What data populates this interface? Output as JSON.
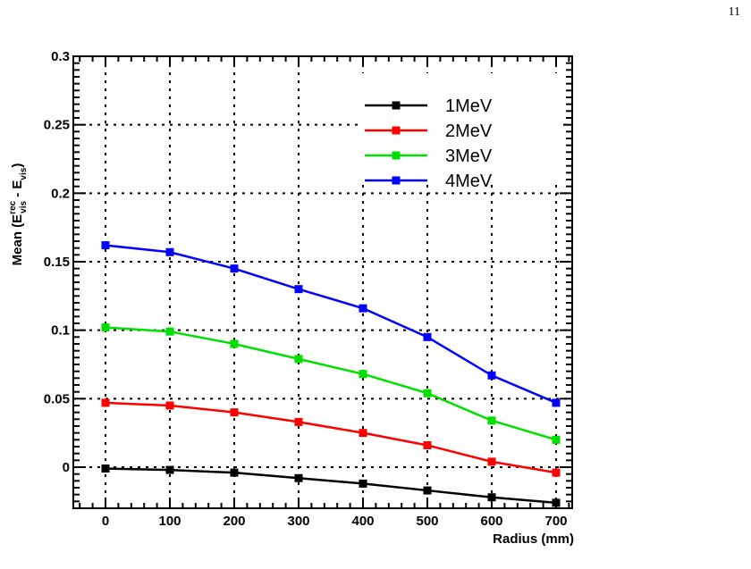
{
  "page": {
    "number": "11"
  },
  "chart_data": {
    "type": "line",
    "xlabel": "Radius (mm)",
    "ylabel": {
      "prefix": "Mean (E",
      "sup1": "rec",
      "sub1": "vis",
      "middle": " - E",
      "sub2": "vis",
      "suffix": ")"
    },
    "xlim": [
      -50,
      725
    ],
    "ylim": [
      -0.03,
      0.3
    ],
    "x_ticks": [
      0,
      100,
      200,
      300,
      400,
      500,
      600,
      700
    ],
    "x_tick_labels": [
      "0",
      "100",
      "200",
      "300",
      "400",
      "500",
      "600",
      "700"
    ],
    "y_ticks": [
      0,
      0.05,
      0.1,
      0.15,
      0.2,
      0.25,
      0.3
    ],
    "y_tick_labels": [
      "0",
      "0.05",
      "0.1",
      "0.15",
      "0.2",
      "0.25",
      "0.3"
    ],
    "grid": true,
    "legend_position": "top-right",
    "x": [
      0,
      100,
      200,
      300,
      400,
      500,
      600,
      700
    ],
    "series": [
      {
        "name": "1MeV",
        "color": "#000000",
        "values": [
          -0.001,
          -0.002,
          -0.004,
          -0.008,
          -0.012,
          -0.017,
          -0.022,
          -0.026
        ]
      },
      {
        "name": "2MeV",
        "color": "#ff0000",
        "values": [
          0.047,
          0.045,
          0.04,
          0.033,
          0.025,
          0.016,
          0.004,
          -0.004
        ]
      },
      {
        "name": "3MeV",
        "color": "#00e000",
        "values": [
          0.102,
          0.099,
          0.09,
          0.079,
          0.068,
          0.054,
          0.034,
          0.02
        ]
      },
      {
        "name": "4MeV",
        "color": "#0000ff",
        "values": [
          0.162,
          0.157,
          0.145,
          0.13,
          0.116,
          0.095,
          0.067,
          0.047
        ]
      }
    ]
  }
}
